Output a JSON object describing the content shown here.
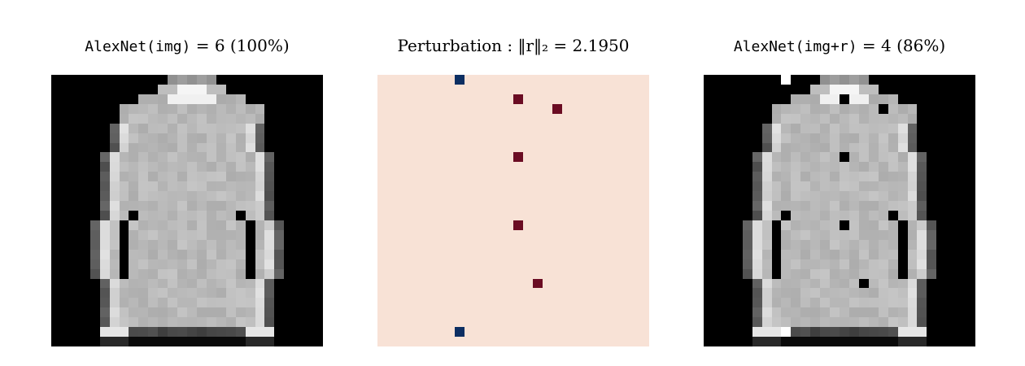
{
  "panels": [
    {
      "title_mono": "AlexNet(img)",
      "title_rest": " = 6 (100%)",
      "kind": "original"
    },
    {
      "title_mono": "",
      "title_rest": "Perturbation : ‖r‖₂ = 2.1950",
      "kind": "perturbation"
    },
    {
      "title_mono": "AlexNet(img+r)",
      "title_rest": " = 4 (86%)",
      "kind": "adversarial"
    }
  ],
  "colors": {
    "background_perturbation": "#f8e2d6",
    "positive_pixel": "#6b0c23",
    "negative_pixel": "#0c2e62",
    "dark_pixel": "#000000",
    "bright_pixel": "#ffffff"
  },
  "perturbation_pixels": [
    {
      "row": 0,
      "col": 8,
      "sign": "negative"
    },
    {
      "row": 2,
      "col": 14,
      "sign": "positive"
    },
    {
      "row": 3,
      "col": 18,
      "sign": "positive"
    },
    {
      "row": 8,
      "col": 14,
      "sign": "positive"
    },
    {
      "row": 15,
      "col": 14,
      "sign": "positive"
    },
    {
      "row": 21,
      "col": 16,
      "sign": "positive"
    },
    {
      "row": 26,
      "col": 8,
      "sign": "negative"
    }
  ]
}
